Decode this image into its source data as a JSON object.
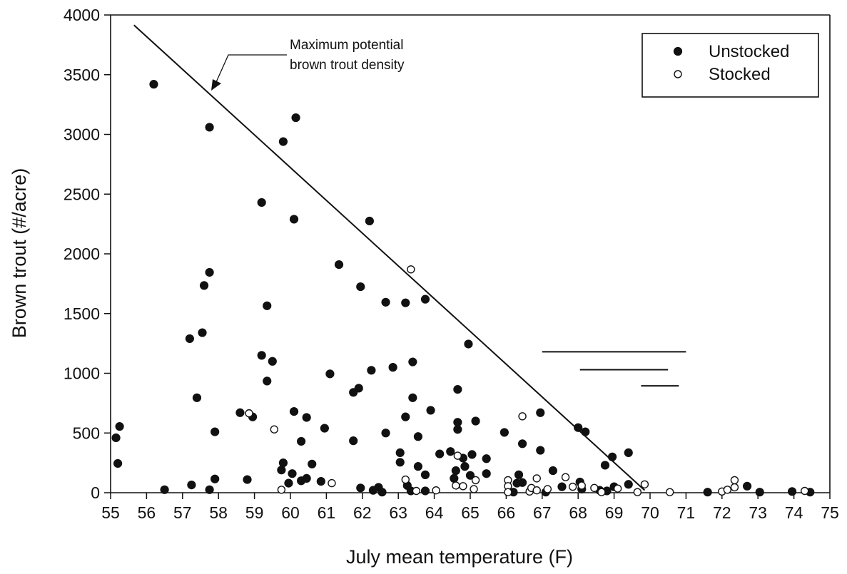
{
  "chart_data": {
    "type": "scatter",
    "title": "",
    "xlabel": "July mean temperature (F)",
    "ylabel": "Brown trout (#/acre)",
    "xlim": [
      55,
      75
    ],
    "ylim": [
      0,
      4000
    ],
    "xticks": [
      55,
      56,
      57,
      58,
      59,
      60,
      61,
      62,
      63,
      64,
      65,
      66,
      67,
      68,
      69,
      70,
      71,
      72,
      73,
      74,
      75
    ],
    "yticks": [
      0,
      500,
      1000,
      1500,
      2000,
      2500,
      3000,
      3500,
      4000
    ],
    "grid": false,
    "legend_position": "top-right",
    "series": [
      {
        "name": "Unstocked",
        "marker": "filled-circle",
        "color": "#111111",
        "points": [
          [
            55.15,
            460
          ],
          [
            55.25,
            555
          ],
          [
            55.2,
            245
          ],
          [
            56.2,
            3420
          ],
          [
            56.5,
            25
          ],
          [
            57.2,
            1290
          ],
          [
            57.25,
            65
          ],
          [
            57.4,
            795
          ],
          [
            57.55,
            1340
          ],
          [
            57.6,
            1735
          ],
          [
            57.75,
            3060
          ],
          [
            57.75,
            1845
          ],
          [
            57.75,
            25
          ],
          [
            57.9,
            510
          ],
          [
            57.9,
            115
          ],
          [
            58.6,
            670
          ],
          [
            58.8,
            110
          ],
          [
            58.95,
            635
          ],
          [
            59.2,
            2430
          ],
          [
            59.2,
            1150
          ],
          [
            59.35,
            1565
          ],
          [
            59.35,
            935
          ],
          [
            59.5,
            1100
          ],
          [
            59.8,
            2940
          ],
          [
            59.75,
            190
          ],
          [
            59.8,
            250
          ],
          [
            59.95,
            80
          ],
          [
            60.05,
            160
          ],
          [
            60.1,
            680
          ],
          [
            60.1,
            2290
          ],
          [
            60.15,
            3140
          ],
          [
            60.3,
            430
          ],
          [
            60.3,
            100
          ],
          [
            60.45,
            630
          ],
          [
            60.45,
            120
          ],
          [
            60.6,
            240
          ],
          [
            60.85,
            95
          ],
          [
            60.95,
            540
          ],
          [
            61.1,
            995
          ],
          [
            61.35,
            1910
          ],
          [
            61.75,
            840
          ],
          [
            61.75,
            435
          ],
          [
            61.9,
            875
          ],
          [
            61.95,
            1725
          ],
          [
            61.95,
            40
          ],
          [
            62.2,
            2275
          ],
          [
            62.25,
            1025
          ],
          [
            62.3,
            20
          ],
          [
            62.45,
            45
          ],
          [
            62.55,
            5
          ],
          [
            62.65,
            1595
          ],
          [
            62.65,
            500
          ],
          [
            62.85,
            1050
          ],
          [
            63.05,
            255
          ],
          [
            63.05,
            335
          ],
          [
            63.2,
            635
          ],
          [
            63.2,
            1590
          ],
          [
            63.25,
            60
          ],
          [
            63.35,
            15
          ],
          [
            63.4,
            795
          ],
          [
            63.4,
            1095
          ],
          [
            63.55,
            220
          ],
          [
            63.55,
            470
          ],
          [
            63.75,
            150
          ],
          [
            63.75,
            1620
          ],
          [
            63.75,
            15
          ],
          [
            63.9,
            690
          ],
          [
            64.15,
            325
          ],
          [
            64.45,
            345
          ],
          [
            64.55,
            120
          ],
          [
            64.6,
            185
          ],
          [
            64.65,
            530
          ],
          [
            64.65,
            590
          ],
          [
            64.65,
            865
          ],
          [
            64.8,
            290
          ],
          [
            64.85,
            220
          ],
          [
            64.95,
            1245
          ],
          [
            65.0,
            145
          ],
          [
            65.05,
            320
          ],
          [
            65.15,
            600
          ],
          [
            65.45,
            160
          ],
          [
            65.45,
            285
          ],
          [
            65.95,
            505
          ],
          [
            66.2,
            5
          ],
          [
            66.3,
            80
          ],
          [
            66.35,
            150
          ],
          [
            66.45,
            410
          ],
          [
            66.45,
            85
          ],
          [
            66.95,
            670
          ],
          [
            66.95,
            355
          ],
          [
            67.1,
            5
          ],
          [
            67.3,
            185
          ],
          [
            67.55,
            50
          ],
          [
            68.0,
            545
          ],
          [
            68.05,
            90
          ],
          [
            68.1,
            30
          ],
          [
            68.2,
            510
          ],
          [
            68.6,
            20
          ],
          [
            68.75,
            230
          ],
          [
            68.8,
            15
          ],
          [
            68.95,
            300
          ],
          [
            69.0,
            50
          ],
          [
            69.4,
            335
          ],
          [
            69.4,
            70
          ],
          [
            71.6,
            5
          ],
          [
            72.7,
            55
          ],
          [
            73.05,
            5
          ],
          [
            73.95,
            10
          ],
          [
            74.45,
            5
          ]
        ]
      },
      {
        "name": "Stocked",
        "marker": "open-circle",
        "color": "#111111",
        "points": [
          [
            58.85,
            665
          ],
          [
            59.55,
            530
          ],
          [
            59.75,
            25
          ],
          [
            61.15,
            80
          ],
          [
            63.2,
            110
          ],
          [
            63.35,
            1870
          ],
          [
            63.5,
            15
          ],
          [
            64.05,
            20
          ],
          [
            64.6,
            60
          ],
          [
            64.65,
            310
          ],
          [
            64.8,
            55
          ],
          [
            65.1,
            30
          ],
          [
            65.15,
            105
          ],
          [
            66.05,
            105
          ],
          [
            66.05,
            55
          ],
          [
            66.05,
            5
          ],
          [
            66.45,
            640
          ],
          [
            66.65,
            10
          ],
          [
            66.7,
            40
          ],
          [
            66.85,
            20
          ],
          [
            66.85,
            120
          ],
          [
            67.15,
            30
          ],
          [
            67.65,
            130
          ],
          [
            67.85,
            50
          ],
          [
            68.1,
            60
          ],
          [
            68.45,
            40
          ],
          [
            68.65,
            5
          ],
          [
            69.1,
            35
          ],
          [
            69.65,
            5
          ],
          [
            69.85,
            70
          ],
          [
            70.55,
            5
          ],
          [
            72.0,
            10
          ],
          [
            72.15,
            25
          ],
          [
            72.35,
            45
          ],
          [
            72.35,
            105
          ],
          [
            74.3,
            15
          ]
        ]
      }
    ],
    "reference_line": {
      "label_line1": "Maximum potential",
      "label_line2": "brown trout density",
      "from": [
        55.65,
        3915
      ],
      "to": [
        69.85,
        20
      ]
    },
    "horizontal_segments": [
      {
        "y": 1180,
        "x": [
          67.0,
          71.0
        ]
      },
      {
        "y": 1030,
        "x": [
          68.05,
          70.5
        ]
      },
      {
        "y": 895,
        "x": [
          69.75,
          70.8
        ]
      }
    ]
  },
  "legend": {
    "unstocked_label": "Unstocked",
    "stocked_label": "Stocked"
  }
}
